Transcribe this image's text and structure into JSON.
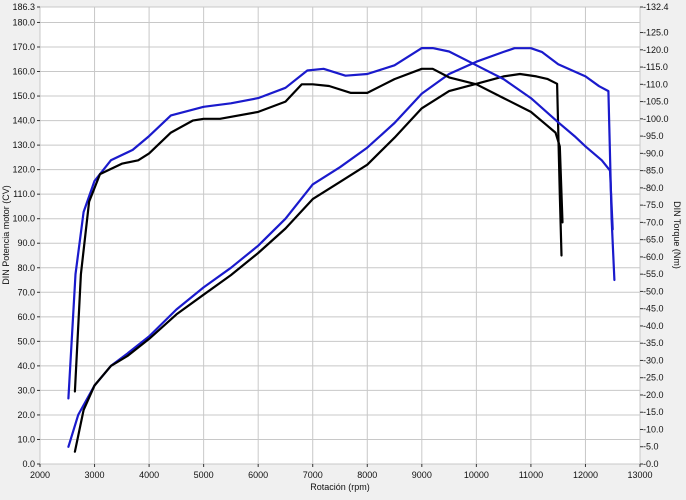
{
  "chart_data": {
    "type": "line",
    "title": "",
    "xlabel": "Rotación (rpm)",
    "ylabel_left": "DIN Potencia motor (CV)",
    "ylabel_right": "DIN Torque (Nm)",
    "xlim": [
      2000,
      13000
    ],
    "ylim_left": [
      0,
      186.3
    ],
    "ylim_right": [
      0,
      132.4
    ],
    "grid": true,
    "x_ticks": [
      2000,
      3000,
      4000,
      5000,
      6000,
      7000,
      8000,
      9000,
      10000,
      11000,
      12000,
      13000
    ],
    "y_left_ticks": [
      0.0,
      10.0,
      20.0,
      30.0,
      40.0,
      50.0,
      60.0,
      70.0,
      80.0,
      90.0,
      100.0,
      110.0,
      120.0,
      130.0,
      140.0,
      150.0,
      160.0,
      170.0,
      180.0,
      186.3
    ],
    "y_right_ticks": [
      0.0,
      5.0,
      10.0,
      15.0,
      20.0,
      25.0,
      30.0,
      35.0,
      40.0,
      45.0,
      50.0,
      55.0,
      60.0,
      65.0,
      70.0,
      75.0,
      80.0,
      85.0,
      90.0,
      95.0,
      100.0,
      105.0,
      110.0,
      115.0,
      120.0,
      125.0,
      132.4
    ],
    "series": [
      {
        "name": "",
        "axis": "left",
        "color": "#1a1acc",
        "points": [
          [
            2520,
            7
          ],
          [
            2700,
            20
          ],
          [
            3000,
            32
          ],
          [
            3300,
            40
          ],
          [
            3600,
            45
          ],
          [
            4000,
            52
          ],
          [
            4500,
            63
          ],
          [
            5000,
            72
          ],
          [
            5500,
            80
          ],
          [
            6000,
            89
          ],
          [
            6500,
            100
          ],
          [
            7000,
            114
          ],
          [
            7500,
            121
          ],
          [
            8000,
            129
          ],
          [
            8500,
            139
          ],
          [
            9000,
            151
          ],
          [
            9500,
            159
          ],
          [
            10000,
            164
          ],
          [
            10500,
            168
          ],
          [
            10700,
            169.5
          ],
          [
            11000,
            169.5
          ],
          [
            11200,
            168
          ],
          [
            11500,
            163
          ],
          [
            11800,
            160
          ],
          [
            12000,
            158
          ],
          [
            12250,
            154
          ],
          [
            12420,
            152
          ],
          [
            12480,
            100
          ],
          [
            12530,
            75
          ]
        ]
      },
      {
        "name": "",
        "axis": "left",
        "color": "#000000",
        "points": [
          [
            2640,
            5
          ],
          [
            2800,
            22
          ],
          [
            3000,
            32
          ],
          [
            3300,
            40
          ],
          [
            3600,
            44
          ],
          [
            4000,
            51
          ],
          [
            4500,
            61
          ],
          [
            5000,
            69
          ],
          [
            5500,
            77
          ],
          [
            6000,
            86
          ],
          [
            6500,
            96
          ],
          [
            7000,
            108
          ],
          [
            7500,
            115
          ],
          [
            8000,
            122
          ],
          [
            8500,
            133
          ],
          [
            9000,
            145
          ],
          [
            9500,
            152
          ],
          [
            10000,
            155
          ],
          [
            10500,
            158
          ],
          [
            10800,
            159
          ],
          [
            11100,
            158
          ],
          [
            11300,
            157
          ],
          [
            11480,
            155
          ],
          [
            11530,
            110
          ],
          [
            11560,
            85
          ]
        ]
      },
      {
        "name": "",
        "axis": "right",
        "color": "#1a1acc",
        "points": [
          [
            2520,
            19
          ],
          [
            2650,
            55
          ],
          [
            2800,
            73
          ],
          [
            3000,
            82
          ],
          [
            3300,
            88
          ],
          [
            3700,
            91
          ],
          [
            4000,
            95
          ],
          [
            4400,
            101
          ],
          [
            5000,
            103.5
          ],
          [
            5500,
            104.5
          ],
          [
            6000,
            106
          ],
          [
            6500,
            109
          ],
          [
            6900,
            114
          ],
          [
            7200,
            114.5
          ],
          [
            7600,
            112.5
          ],
          [
            8000,
            113
          ],
          [
            8500,
            115.5
          ],
          [
            9000,
            120.5
          ],
          [
            9200,
            120.5
          ],
          [
            9500,
            119.5
          ],
          [
            10000,
            115.5
          ],
          [
            10500,
            111.5
          ],
          [
            11000,
            106
          ],
          [
            11500,
            99
          ],
          [
            11800,
            95
          ],
          [
            12000,
            92
          ],
          [
            12300,
            88
          ],
          [
            12400,
            86
          ],
          [
            12450,
            85
          ],
          [
            12500,
            68
          ]
        ]
      },
      {
        "name": "",
        "axis": "right",
        "color": "#000000",
        "points": [
          [
            2640,
            21
          ],
          [
            2750,
            55
          ],
          [
            2900,
            76
          ],
          [
            3100,
            84
          ],
          [
            3500,
            87
          ],
          [
            3800,
            88
          ],
          [
            4000,
            90
          ],
          [
            4400,
            96
          ],
          [
            4800,
            99.5
          ],
          [
            5000,
            100
          ],
          [
            5300,
            100
          ],
          [
            6000,
            102
          ],
          [
            6500,
            105
          ],
          [
            6800,
            110
          ],
          [
            7000,
            110
          ],
          [
            7300,
            109.5
          ],
          [
            7700,
            107.5
          ],
          [
            8000,
            107.5
          ],
          [
            8500,
            111.5
          ],
          [
            9000,
            114.5
          ],
          [
            9200,
            114.5
          ],
          [
            9500,
            112
          ],
          [
            10000,
            110
          ],
          [
            10500,
            106
          ],
          [
            11000,
            102
          ],
          [
            11300,
            98
          ],
          [
            11450,
            96
          ],
          [
            11530,
            92
          ],
          [
            11580,
            70
          ]
        ]
      }
    ]
  }
}
